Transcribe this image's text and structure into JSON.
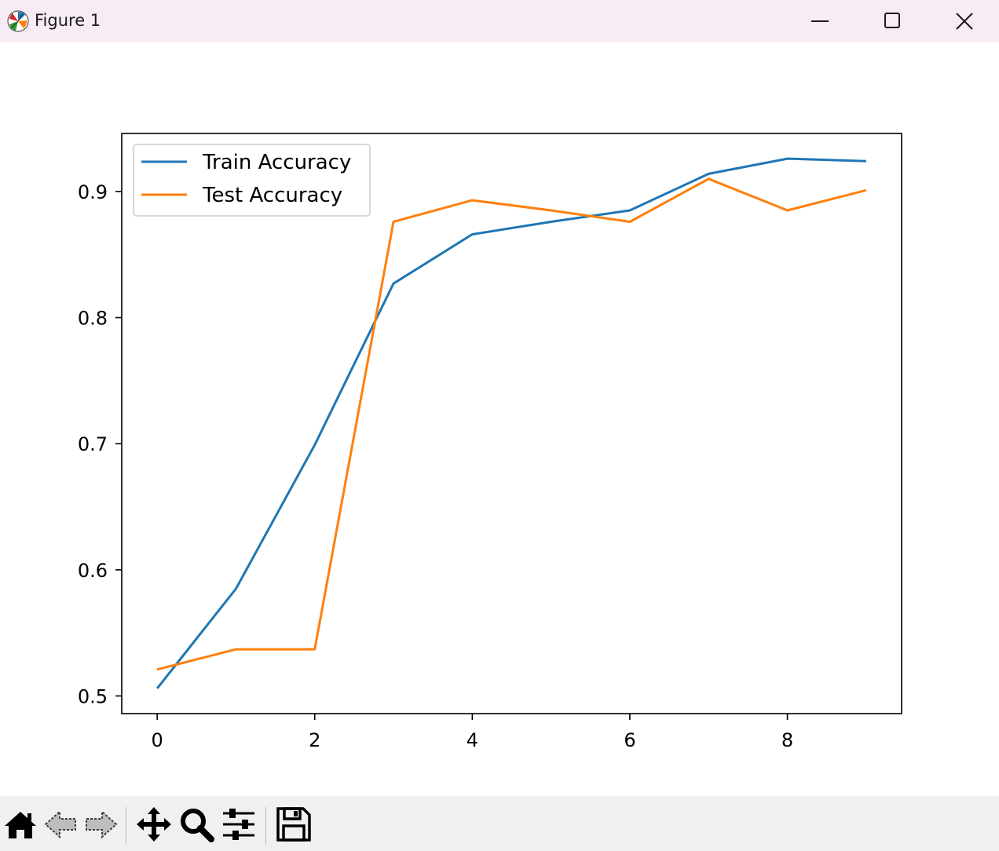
{
  "window": {
    "title": "Figure 1",
    "icons": {
      "app": "matplotlib-logo-icon",
      "minimize": "minimize-icon",
      "maximize": "maximize-icon",
      "close": "close-icon"
    }
  },
  "toolbar": {
    "tools": [
      {
        "name": "home-icon",
        "tooltip": "Reset original view"
      },
      {
        "name": "back-arrow-icon",
        "tooltip": "Back to previous view"
      },
      {
        "name": "forward-arrow-icon",
        "tooltip": "Forward to next view"
      },
      {
        "name": "pan-move-icon",
        "tooltip": "Pan axes"
      },
      {
        "name": "zoom-magnifier-icon",
        "tooltip": "Zoom to rectangle"
      },
      {
        "name": "configure-subplots-icon",
        "tooltip": "Configure subplots"
      },
      {
        "name": "save-floppy-icon",
        "tooltip": "Save the figure"
      }
    ]
  },
  "chart_data": {
    "type": "line",
    "title": "",
    "xlabel": "",
    "ylabel": "",
    "x": [
      0,
      1,
      2,
      3,
      4,
      5,
      6,
      7,
      8,
      9
    ],
    "xlim": [
      -0.45,
      9.45
    ],
    "ylim": [
      0.486,
      0.946
    ],
    "xticks": [
      0,
      2,
      4,
      6,
      8
    ],
    "xtick_labels": [
      "0",
      "2",
      "4",
      "6",
      "8"
    ],
    "yticks": [
      0.5,
      0.6,
      0.7,
      0.8,
      0.9
    ],
    "ytick_labels": [
      "0.5",
      "0.6",
      "0.7",
      "0.8",
      "0.9"
    ],
    "grid": false,
    "legend_position": "upper-left",
    "series": [
      {
        "name": "Train Accuracy",
        "color": "#1f77b4",
        "values": [
          0.506,
          0.585,
          0.699,
          0.827,
          0.866,
          0.876,
          0.885,
          0.914,
          0.926,
          0.924
        ]
      },
      {
        "name": "Test Accuracy",
        "color": "#ff7f0e",
        "values": [
          0.521,
          0.537,
          0.537,
          0.876,
          0.893,
          0.885,
          0.876,
          0.91,
          0.885,
          0.901
        ]
      }
    ]
  }
}
